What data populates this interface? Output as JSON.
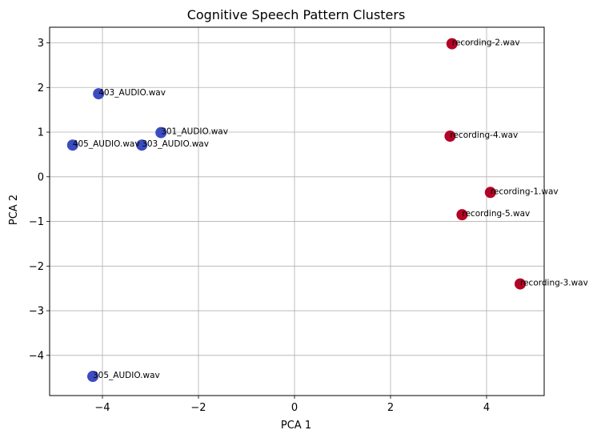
{
  "chart_data": {
    "type": "scatter",
    "title": "Cognitive Speech Pattern Clusters",
    "xlabel": "PCA 1",
    "ylabel": "PCA 2",
    "xlim": [
      -5.1,
      5.2
    ],
    "ylim": [
      -4.9,
      3.35
    ],
    "xticks": [
      -4,
      -2,
      0,
      2,
      4
    ],
    "yticks": [
      -4,
      -3,
      -2,
      -1,
      0,
      1,
      2,
      3
    ],
    "xtick_labels": [
      "−4",
      "−2",
      "0",
      "2",
      "4"
    ],
    "ytick_labels": [
      "−4",
      "−3",
      "−2",
      "−1",
      "0",
      "1",
      "2",
      "3"
    ],
    "grid": true,
    "colors": {
      "cluster_0": "#3b4cc0",
      "cluster_1": "#b40426"
    },
    "points": [
      {
        "label": "403_AUDIO.wav",
        "x": -4.08,
        "y": 1.86,
        "cluster": 0
      },
      {
        "label": "301_AUDIO.wav",
        "x": -2.78,
        "y": 0.99,
        "cluster": 0
      },
      {
        "label": "405_AUDIO.wav",
        "x": -4.62,
        "y": 0.71,
        "cluster": 0
      },
      {
        "label": "303_AUDIO.wav",
        "x": -3.18,
        "y": 0.71,
        "cluster": 0
      },
      {
        "label": "305_AUDIO.wav",
        "x": -4.2,
        "y": -4.47,
        "cluster": 0
      },
      {
        "label": "recording-2.wav",
        "x": 3.28,
        "y": 2.98,
        "cluster": 1
      },
      {
        "label": "recording-4.wav",
        "x": 3.24,
        "y": 0.91,
        "cluster": 1
      },
      {
        "label": "recording-1.wav",
        "x": 4.08,
        "y": -0.35,
        "cluster": 1
      },
      {
        "label": "recording-5.wav",
        "x": 3.49,
        "y": -0.85,
        "cluster": 1
      },
      {
        "label": "recording-3.wav",
        "x": 4.7,
        "y": -2.4,
        "cluster": 1
      }
    ]
  }
}
